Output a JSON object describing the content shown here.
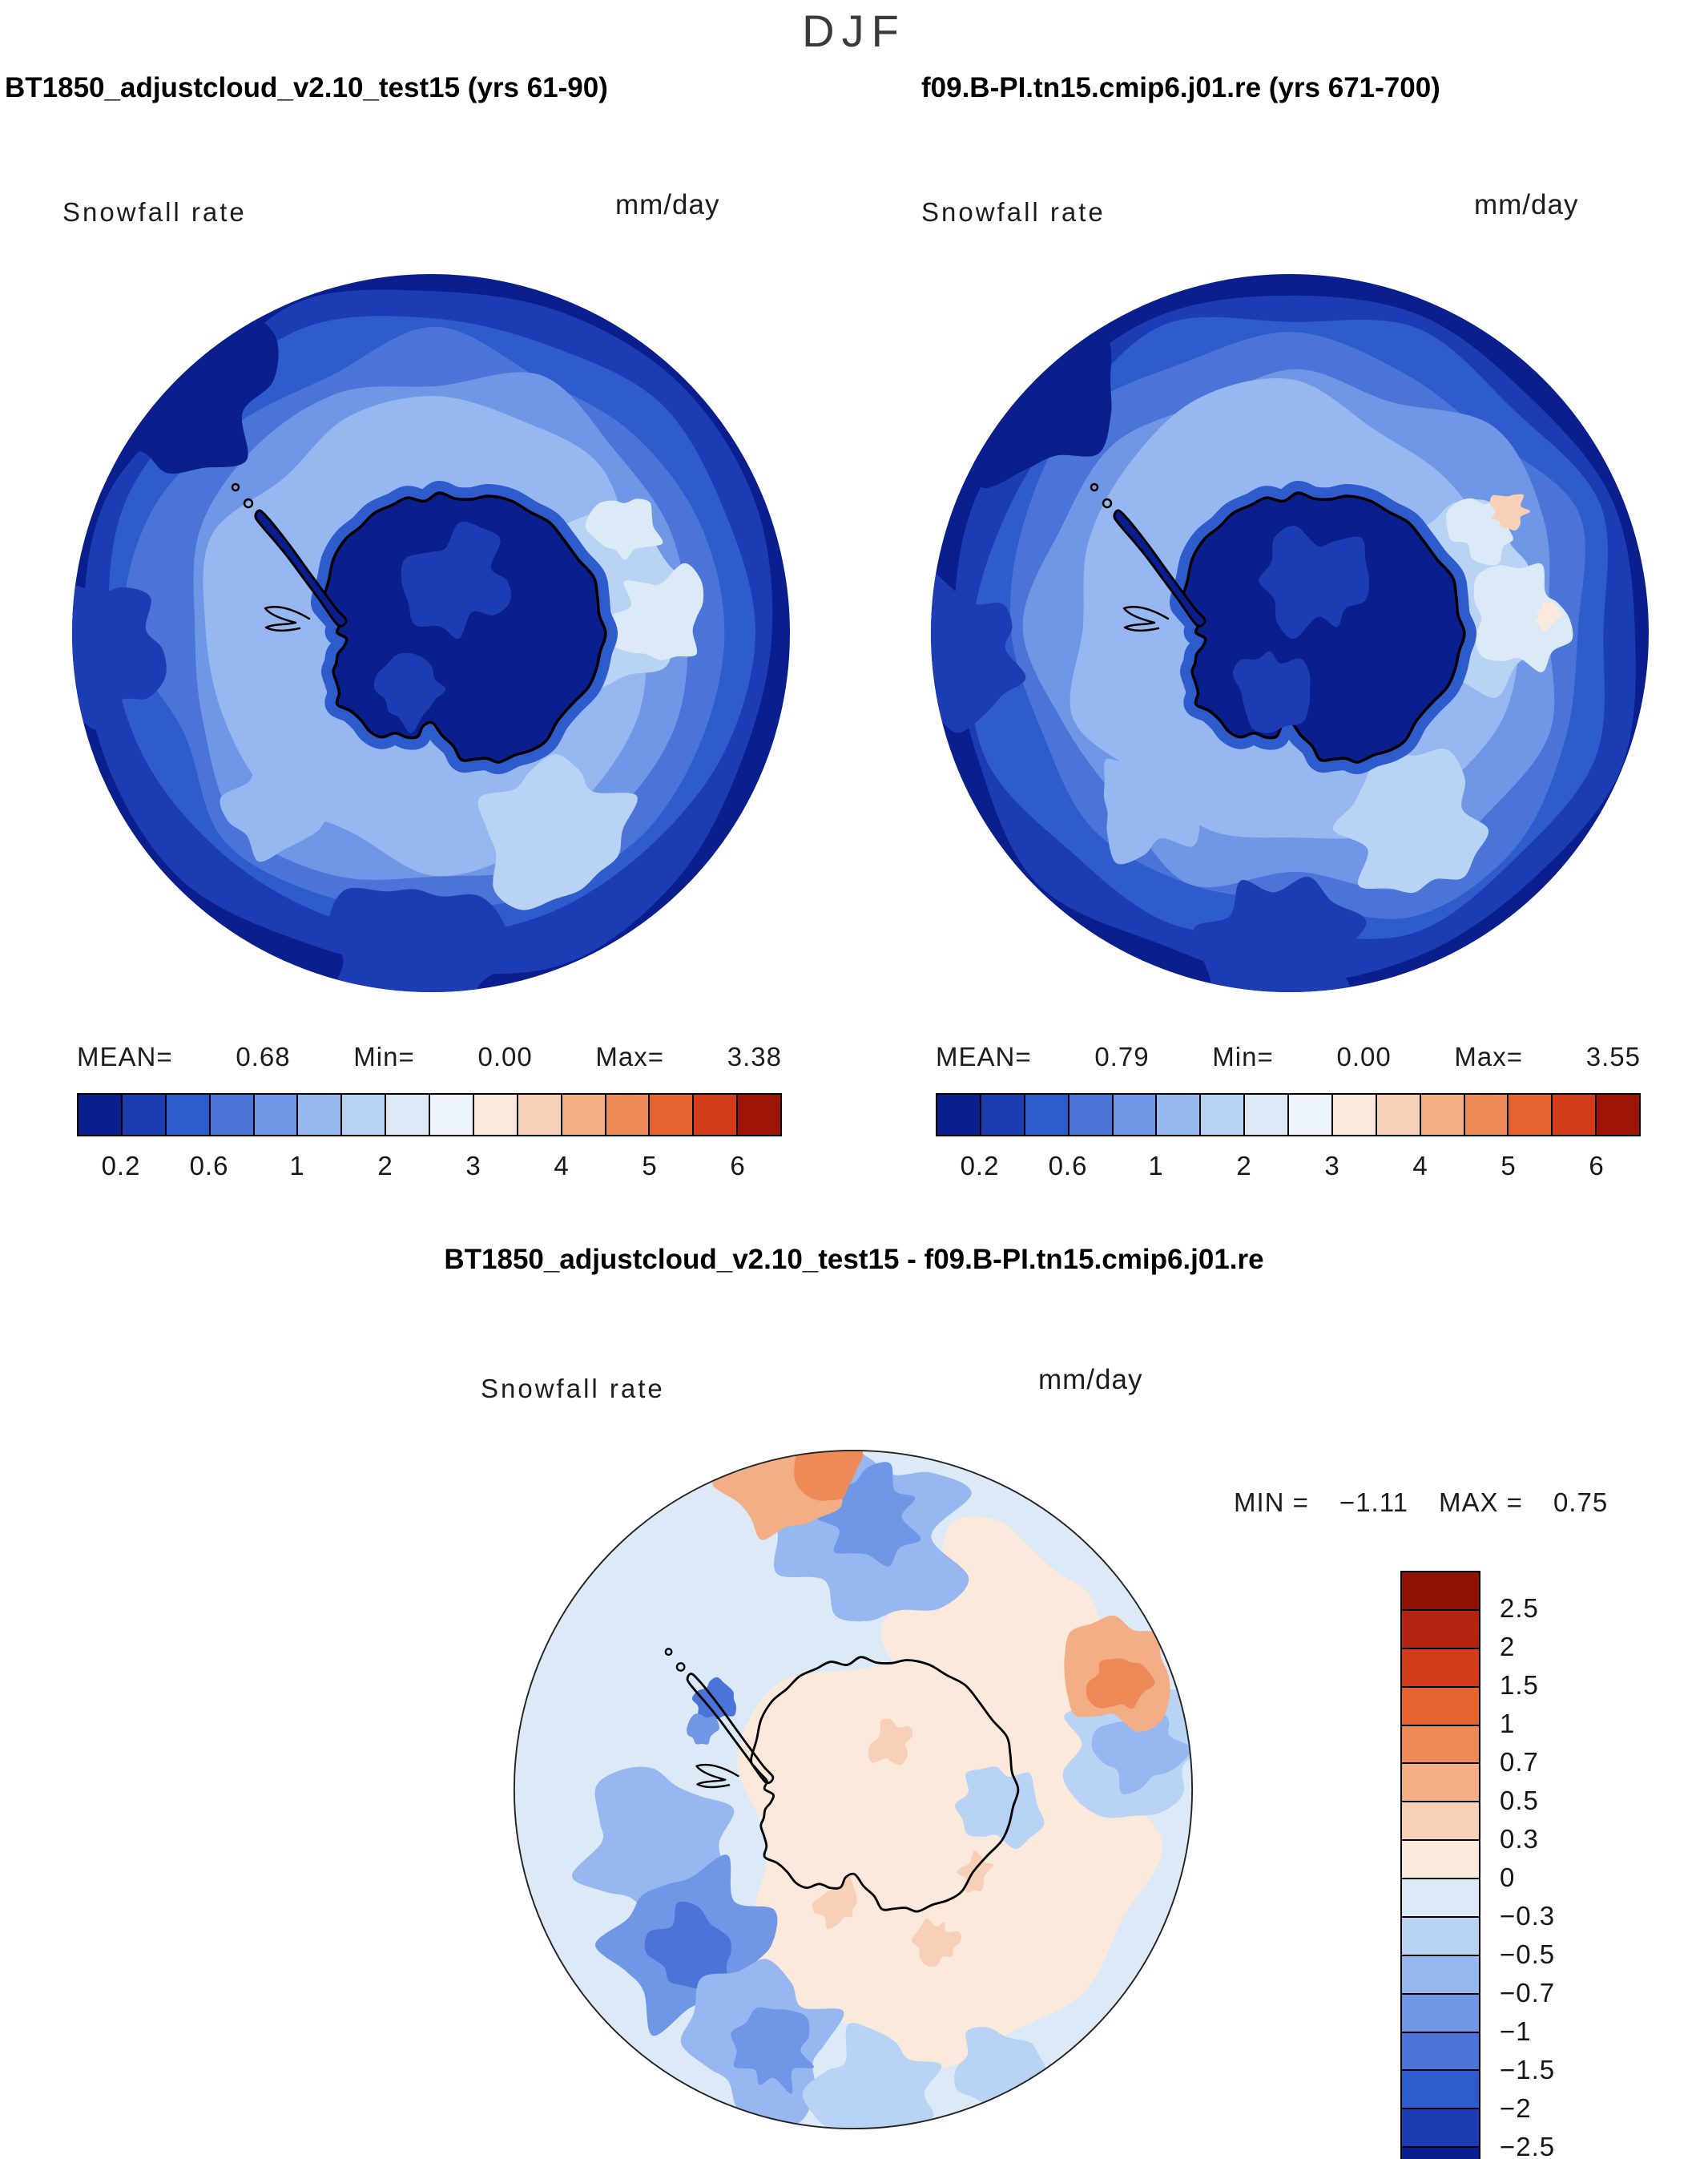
{
  "title": "DJF",
  "panels": [
    {
      "header": "BT1850_adjustcloud_v2.10_test15 (yrs 61-90)",
      "field_label": "Snowfall rate",
      "units": "mm/day",
      "stats": {
        "mean_label": "MEAN=",
        "mean": "0.68",
        "min_label": "Min=",
        "min": "0.00",
        "max_label": "Max=",
        "max": "3.38"
      }
    },
    {
      "header": "f09.B-PI.tn15.cmip6.j01.re (yrs 671-700)",
      "field_label": "Snowfall rate",
      "units": "mm/day",
      "stats": {
        "mean_label": "MEAN=",
        "mean": "0.79",
        "min_label": "Min=",
        "min": "0.00",
        "max_label": "Max=",
        "max": "3.55"
      }
    }
  ],
  "diff": {
    "header": "BT1850_adjustcloud_v2.10_test15 - f09.B-PI.tn15.cmip6.j01.re",
    "field_label": "Snowfall rate",
    "units": "mm/day",
    "min_label": "MIN =",
    "min": "−1.11",
    "max_label": "MAX =",
    "max": "0.75"
  },
  "colorbar": {
    "colors": [
      "#0a1e8e",
      "#1c3cb4",
      "#2f5ccd",
      "#4a74d8",
      "#6f97e6",
      "#96b7ef",
      "#b9d3f5",
      "#dce9f7",
      "#eef4fb",
      "#fbe9dc",
      "#f8d0b8",
      "#f4ae85",
      "#ee8a58",
      "#e5642f",
      "#d33d1c",
      "#9e1508"
    ],
    "tick_labels": [
      "0.2",
      "0.6",
      "1",
      "2",
      "3",
      "4",
      "5",
      "6"
    ],
    "tick_positions": [
      1,
      3,
      5,
      7,
      9,
      11,
      13,
      15
    ]
  },
  "diff_colorbar": {
    "colors": [
      "#8f1205",
      "#b52410",
      "#d33d1c",
      "#e5642f",
      "#ee8a58",
      "#f4ae85",
      "#f8d0b8",
      "#fbe9dc",
      "#dce9f7",
      "#b9d3f5",
      "#96b7ef",
      "#6f97e6",
      "#4a74d8",
      "#2f5ccd",
      "#1c3cb4",
      "#0a1e8e"
    ],
    "tick_labels": [
      "2.5",
      "2",
      "1.5",
      "1",
      "0.7",
      "0.5",
      "0.3",
      "0",
      "−0.3",
      "−0.5",
      "−0.7",
      "−1",
      "−1.5",
      "−2",
      "−2.5"
    ]
  },
  "chart_data": [
    {
      "type": "heatmap",
      "title": "BT1850_adjustcloud_v2.10_test15 (yrs 61-90)",
      "season": "DJF",
      "variable": "Snowfall rate",
      "units": "mm/day",
      "projection": "south polar stereographic",
      "stats": {
        "mean": 0.68,
        "min": 0.0,
        "max": 3.38
      },
      "contour_levels": [
        0.2,
        0.4,
        0.6,
        0.8,
        1,
        1.5,
        2,
        2.5,
        3,
        3.5,
        4,
        4.5,
        5,
        5.5,
        6
      ],
      "colormap": "blue-white-red",
      "spatial_pattern": "Very low snowfall (<0.2 mm/day, dark navy) over the Antarctic interior plateau and at the equatorward edge of the domain; 1-2 mm/day (light blue) over the circumpolar ocean storm track, with the lightest values (~2 mm/day) east of the continent"
    },
    {
      "type": "heatmap",
      "title": "f09.B-PI.tn15.cmip6.j01.re (yrs 671-700)",
      "season": "DJF",
      "variable": "Snowfall rate",
      "units": "mm/day",
      "projection": "south polar stereographic",
      "stats": {
        "mean": 0.79,
        "min": 0.0,
        "max": 3.55
      },
      "contour_levels": [
        0.2,
        0.4,
        0.6,
        0.8,
        1,
        1.5,
        2,
        2.5,
        3,
        3.5,
        4,
        4.5,
        5,
        5.5,
        6
      ],
      "colormap": "blue-white-red",
      "spatial_pattern": "Same pattern as panel 1 with slightly higher snowfall over the ocean band and small patches exceeding ~2.5-3 mm/day (pale peach) near the eastern coast"
    },
    {
      "type": "heatmap",
      "title": "BT1850_adjustcloud_v2.10_test15 - f09.B-PI.tn15.cmip6.j01.re",
      "season": "DJF",
      "variable": "Snowfall rate difference",
      "units": "mm/day",
      "projection": "south polar stereographic",
      "stats": {
        "min": -1.11,
        "max": 0.75
      },
      "contour_levels": [
        -2.5,
        -2,
        -1.5,
        -1,
        -0.7,
        -0.5,
        -0.3,
        0,
        0.3,
        0.5,
        0.7,
        1,
        1.5,
        2,
        2.5
      ],
      "colormap": "blue-white-red",
      "spatial_pattern": "Weak positive anomalies (0 to 0.3, pale peach) over the continent interior; negative anomalies (−0.3 to −1, blues) over the southwest ocean sector, near the peninsula and north of the pole; positive patches (0.3-1, orange) at the top edge and east of the continent"
    }
  ]
}
